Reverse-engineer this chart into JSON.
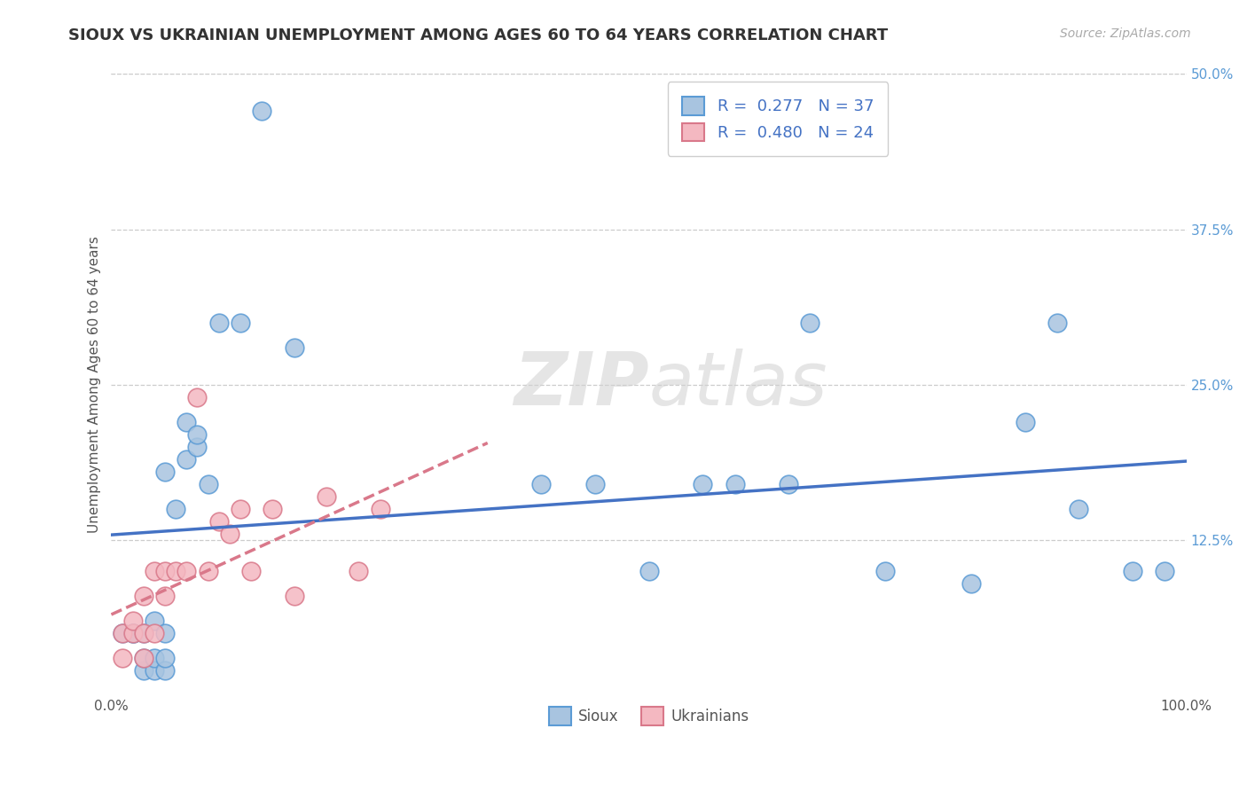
{
  "title": "SIOUX VS UKRAINIAN UNEMPLOYMENT AMONG AGES 60 TO 64 YEARS CORRELATION CHART",
  "source": "Source: ZipAtlas.com",
  "ylabel": "Unemployment Among Ages 60 to 64 years",
  "xlim": [
    0.0,
    1.0
  ],
  "ylim": [
    0.0,
    0.5
  ],
  "xtick_labels": [
    "0.0%",
    "100.0%"
  ],
  "xtick_positions": [
    0.0,
    1.0
  ],
  "ytick_labels": [
    "12.5%",
    "25.0%",
    "37.5%",
    "50.0%"
  ],
  "ytick_positions": [
    0.125,
    0.25,
    0.375,
    0.5
  ],
  "sioux_color": "#a8c4e0",
  "sioux_edge_color": "#5b9bd5",
  "ukrainian_color": "#f4b8c1",
  "ukrainian_edge_color": "#d9788a",
  "sioux_line_color": "#4472c4",
  "ukrainian_line_color": "#d9788a",
  "legend_label1": "Sioux",
  "legend_label2": "Ukrainians",
  "watermark1": "ZIP",
  "watermark2": "atlas",
  "watermark_color": "#d0d0d0",
  "background_color": "#ffffff",
  "grid_color": "#cccccc",
  "sioux_x": [
    0.01,
    0.02,
    0.02,
    0.03,
    0.03,
    0.03,
    0.04,
    0.04,
    0.04,
    0.05,
    0.05,
    0.05,
    0.05,
    0.06,
    0.07,
    0.07,
    0.08,
    0.08,
    0.09,
    0.1,
    0.12,
    0.14,
    0.17,
    0.4,
    0.45,
    0.5,
    0.55,
    0.58,
    0.63,
    0.65,
    0.72,
    0.8,
    0.85,
    0.88,
    0.9,
    0.95,
    0.98
  ],
  "sioux_y": [
    0.05,
    0.05,
    0.05,
    0.02,
    0.03,
    0.05,
    0.02,
    0.03,
    0.06,
    0.02,
    0.03,
    0.05,
    0.18,
    0.15,
    0.19,
    0.22,
    0.2,
    0.21,
    0.17,
    0.3,
    0.3,
    0.47,
    0.28,
    0.17,
    0.17,
    0.1,
    0.17,
    0.17,
    0.17,
    0.3,
    0.1,
    0.09,
    0.22,
    0.3,
    0.15,
    0.1,
    0.1
  ],
  "ukrainian_x": [
    0.01,
    0.01,
    0.02,
    0.02,
    0.03,
    0.03,
    0.03,
    0.04,
    0.04,
    0.05,
    0.05,
    0.06,
    0.07,
    0.08,
    0.09,
    0.1,
    0.11,
    0.12,
    0.13,
    0.15,
    0.17,
    0.2,
    0.23,
    0.25
  ],
  "ukrainian_y": [
    0.03,
    0.05,
    0.05,
    0.06,
    0.03,
    0.05,
    0.08,
    0.05,
    0.1,
    0.08,
    0.1,
    0.1,
    0.1,
    0.24,
    0.1,
    0.14,
    0.13,
    0.15,
    0.1,
    0.15,
    0.08,
    0.16,
    0.1,
    0.15
  ],
  "title_fontsize": 13,
  "axis_label_fontsize": 11,
  "tick_fontsize": 11,
  "legend_fontsize": 13,
  "source_fontsize": 10
}
